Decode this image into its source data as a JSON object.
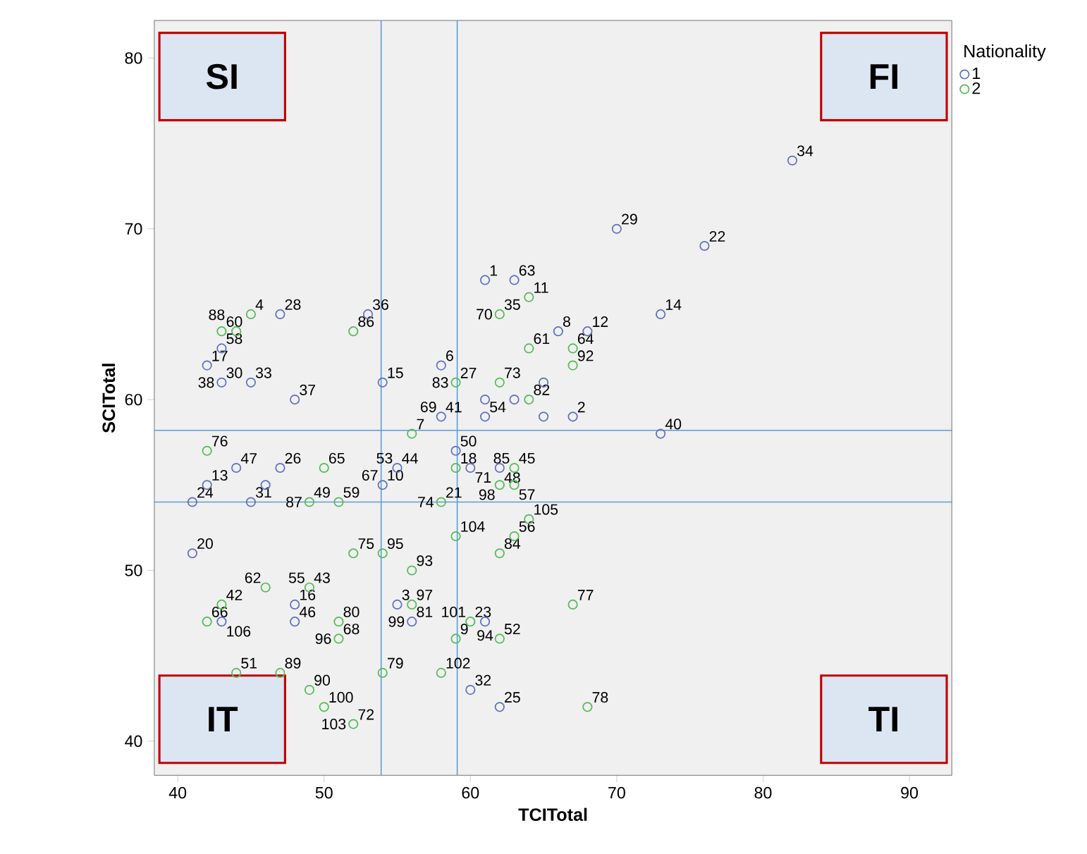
{
  "chart_data": {
    "type": "scatter",
    "xlabel": "TCITotal",
    "ylabel": "SCITotal",
    "legend_title": "Nationality",
    "legend": "top right",
    "marker": "circle",
    "xlim": [
      38.4,
      92.9
    ],
    "ylim": [
      38,
      82.2
    ],
    "xticks": [
      40,
      50,
      60,
      70,
      80,
      90
    ],
    "yticks": [
      40,
      50,
      60,
      70,
      80
    ],
    "series": [
      {
        "name": "1",
        "color": "#6070c0",
        "x": [
          47,
          53,
          43,
          42,
          43,
          45,
          48,
          54,
          58,
          58,
          61,
          82,
          70,
          76,
          61,
          63,
          73,
          66,
          68,
          65,
          61,
          63,
          65,
          67,
          73,
          44,
          47,
          55,
          59,
          60,
          42,
          46,
          54,
          41,
          45,
          41,
          48,
          55,
          43,
          48,
          56,
          61,
          60,
          62,
          62
        ],
        "values": [
          65,
          65,
          63,
          62,
          61,
          61,
          60,
          61,
          62,
          59,
          59,
          74,
          70,
          69,
          67,
          67,
          65,
          64,
          64,
          61,
          60,
          60,
          59,
          59,
          58,
          56,
          56,
          56,
          57,
          56,
          55,
          55,
          55,
          54,
          54,
          51,
          48,
          48,
          47,
          47,
          47,
          47,
          43,
          56,
          42
        ]
      },
      {
        "name": "2",
        "color": "#55bb55",
        "x": [
          45,
          43,
          44,
          52,
          59,
          56,
          42,
          64,
          62,
          64,
          67,
          67,
          62,
          64,
          50,
          59,
          49,
          51,
          58,
          52,
          54,
          59,
          56,
          46,
          49,
          43,
          56,
          42,
          51,
          60,
          51,
          59,
          44,
          47,
          54,
          58,
          49,
          50,
          52,
          63,
          62,
          63,
          64,
          63,
          62,
          67,
          62,
          68
        ],
        "values": [
          65,
          64,
          64,
          64,
          61,
          58,
          57,
          66,
          65,
          63,
          63,
          62,
          61,
          60,
          56,
          56,
          54,
          54,
          54,
          51,
          51,
          52,
          50,
          49,
          49,
          48,
          48,
          47,
          47,
          47,
          46,
          46,
          44,
          44,
          44,
          44,
          43,
          42,
          41,
          56,
          55,
          55,
          53,
          52,
          51,
          48,
          46,
          42
        ]
      }
    ],
    "ref_lines": [
      {
        "axis": "x",
        "value": 53.9,
        "color": "#5b9bd5"
      },
      {
        "axis": "x",
        "value": 59.1,
        "color": "#5b9bd5"
      },
      {
        "axis": "y",
        "value": 58.2,
        "color": "#5b9bd5"
      },
      {
        "axis": "y",
        "value": 54.0,
        "color": "#5b9bd5"
      }
    ],
    "annotations": [
      "SI",
      "FI",
      "IT",
      "TI",
      {
        "text": "1",
        "x": 61,
        "y": 67
      },
      {
        "text": "2",
        "x": 67,
        "y": 59
      },
      {
        "text": "3",
        "x": 55,
        "y": 48
      },
      {
        "text": "4",
        "x": 45,
        "y": 65
      },
      {
        "text": "6",
        "x": 58,
        "y": 62
      },
      {
        "text": "7",
        "x": 56,
        "y": 58
      },
      {
        "text": "8",
        "x": 66,
        "y": 64
      },
      {
        "text": "9",
        "x": 59,
        "y": 46
      },
      {
        "text": "10",
        "x": 54,
        "y": 55
      },
      {
        "text": "11",
        "x": 64,
        "y": 66
      },
      {
        "text": "12",
        "x": 68,
        "y": 64
      },
      {
        "text": "13",
        "x": 42,
        "y": 55
      },
      {
        "text": "14",
        "x": 73,
        "y": 65
      },
      {
        "text": "15",
        "x": 54,
        "y": 61
      },
      {
        "text": "16",
        "x": 48,
        "y": 48
      },
      {
        "text": "17",
        "x": 42,
        "y": 62
      },
      {
        "text": "18",
        "x": 59,
        "y": 56
      },
      {
        "text": "20",
        "x": 41,
        "y": 51
      },
      {
        "text": "21",
        "x": 58,
        "y": 54
      },
      {
        "text": "22",
        "x": 76,
        "y": 69
      },
      {
        "text": "23",
        "x": 60,
        "y": 47
      },
      {
        "text": "24",
        "x": 41,
        "y": 54
      },
      {
        "text": "25",
        "x": 62,
        "y": 42
      },
      {
        "text": "26",
        "x": 47,
        "y": 56
      },
      {
        "text": "27",
        "x": 59,
        "y": 61
      },
      {
        "text": "28",
        "x": 47,
        "y": 65
      },
      {
        "text": "29",
        "x": 70,
        "y": 70
      },
      {
        "text": "30",
        "x": 43,
        "y": 61
      },
      {
        "text": "31",
        "x": 45,
        "y": 54
      },
      {
        "text": "32",
        "x": 60,
        "y": 43
      },
      {
        "text": "33",
        "x": 45,
        "y": 61
      },
      {
        "text": "34",
        "x": 82,
        "y": 74
      },
      {
        "text": "35",
        "x": 62,
        "y": 65
      },
      {
        "text": "36",
        "x": 53,
        "y": 65
      },
      {
        "text": "37",
        "x": 48,
        "y": 60
      },
      {
        "text": "38",
        "x": 43,
        "y": 61
      },
      {
        "text": "40",
        "x": 73,
        "y": 58
      },
      {
        "text": "41",
        "x": 58,
        "y": 59
      },
      {
        "text": "42",
        "x": 43,
        "y": 48
      },
      {
        "text": "43",
        "x": 49,
        "y": 49
      },
      {
        "text": "44",
        "x": 55,
        "y": 56
      },
      {
        "text": "45",
        "x": 63,
        "y": 56
      },
      {
        "text": "46",
        "x": 48,
        "y": 47
      },
      {
        "text": "47",
        "x": 44,
        "y": 56
      },
      {
        "text": "48",
        "x": 62,
        "y": 56
      },
      {
        "text": "49",
        "x": 49,
        "y": 54
      },
      {
        "text": "50",
        "x": 59,
        "y": 57
      },
      {
        "text": "51",
        "x": 44,
        "y": 44
      },
      {
        "text": "52",
        "x": 62,
        "y": 46
      },
      {
        "text": "53",
        "x": 55,
        "y": 56
      },
      {
        "text": "54",
        "x": 61,
        "y": 59
      },
      {
        "text": "55",
        "x": 49,
        "y": 49
      },
      {
        "text": "56",
        "x": 63,
        "y": 52
      },
      {
        "text": "57",
        "x": 63,
        "y": 55
      },
      {
        "text": "58",
        "x": 43,
        "y": 63
      },
      {
        "text": "59",
        "x": 51,
        "y": 54
      },
      {
        "text": "60",
        "x": 43,
        "y": 64
      },
      {
        "text": "61",
        "x": 64,
        "y": 63
      },
      {
        "text": "62",
        "x": 46,
        "y": 49
      },
      {
        "text": "63",
        "x": 63,
        "y": 67
      },
      {
        "text": "64",
        "x": 67,
        "y": 63
      },
      {
        "text": "65",
        "x": 50,
        "y": 56
      },
      {
        "text": "66",
        "x": 42,
        "y": 47
      },
      {
        "text": "67",
        "x": 54,
        "y": 55
      },
      {
        "text": "68",
        "x": 51,
        "y": 46
      },
      {
        "text": "69",
        "x": 58,
        "y": 59
      },
      {
        "text": "70",
        "x": 62,
        "y": 65
      },
      {
        "text": "71",
        "x": 60,
        "y": 56
      },
      {
        "text": "72",
        "x": 52,
        "y": 41
      },
      {
        "text": "73",
        "x": 62,
        "y": 61
      },
      {
        "text": "74",
        "x": 58,
        "y": 54
      },
      {
        "text": "75",
        "x": 52,
        "y": 51
      },
      {
        "text": "76",
        "x": 42,
        "y": 57
      },
      {
        "text": "77",
        "x": 67,
        "y": 48
      },
      {
        "text": "78",
        "x": 68,
        "y": 42
      },
      {
        "text": "79",
        "x": 54,
        "y": 44
      },
      {
        "text": "80",
        "x": 51,
        "y": 47
      },
      {
        "text": "81",
        "x": 56,
        "y": 47
      },
      {
        "text": "82",
        "x": 64,
        "y": 60
      },
      {
        "text": "83",
        "x": 59,
        "y": 61
      },
      {
        "text": "84",
        "x": 62,
        "y": 51
      },
      {
        "text": "85",
        "x": 63,
        "y": 56
      },
      {
        "text": "86",
        "x": 52,
        "y": 64
      },
      {
        "text": "87",
        "x": 49,
        "y": 54
      },
      {
        "text": "88",
        "x": 44,
        "y": 64
      },
      {
        "text": "89",
        "x": 47,
        "y": 44
      },
      {
        "text": "90",
        "x": 49,
        "y": 43
      },
      {
        "text": "92",
        "x": 67,
        "y": 62
      },
      {
        "text": "93",
        "x": 56,
        "y": 50
      },
      {
        "text": "94",
        "x": 61,
        "y": 47
      },
      {
        "text": "95",
        "x": 54,
        "y": 51
      },
      {
        "text": "96",
        "x": 51,
        "y": 46
      },
      {
        "text": "97",
        "x": 56,
        "y": 48
      },
      {
        "text": "98",
        "x": 62,
        "y": 55
      },
      {
        "text": "99",
        "x": 56,
        "y": 47
      },
      {
        "text": "100",
        "x": 50,
        "y": 42
      },
      {
        "text": "101",
        "x": 60,
        "y": 47
      },
      {
        "text": "102",
        "x": 58,
        "y": 44
      },
      {
        "text": "103",
        "x": 52,
        "y": 41
      },
      {
        "text": "104",
        "x": 59,
        "y": 52
      },
      {
        "text": "105",
        "x": 64,
        "y": 53
      },
      {
        "text": "106",
        "x": 43,
        "y": 47
      }
    ]
  }
}
